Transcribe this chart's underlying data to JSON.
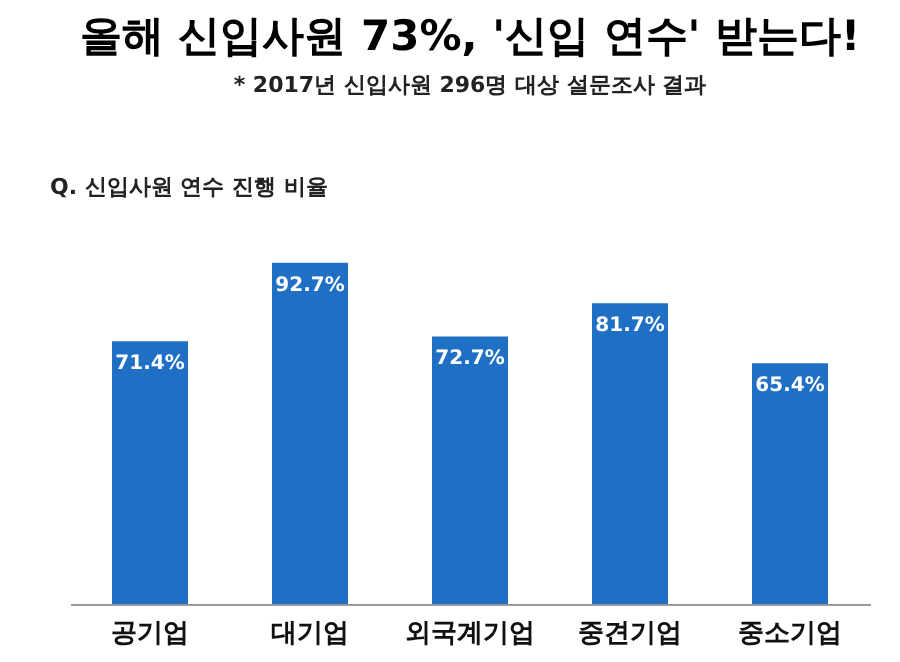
{
  "chart_data": {
    "type": "bar",
    "title": "올해 신입사원 73%, '신입 연수' 받는다!",
    "subtitle": "* 2017년 신입사원 296명 대상 설문조사 결과",
    "annotations": [
      "Q. 신입사원 연수 진행 비율"
    ],
    "categories": [
      "공기업",
      "대기업",
      "외국계기업",
      "중견기업",
      "중소기업"
    ],
    "values": [
      71.4,
      92.7,
      72.7,
      81.7,
      65.4
    ],
    "value_labels": [
      "71.4%",
      "92.7%",
      "72.7%",
      "81.7%",
      "65.4%"
    ],
    "color": "#1f6fc5"
  }
}
